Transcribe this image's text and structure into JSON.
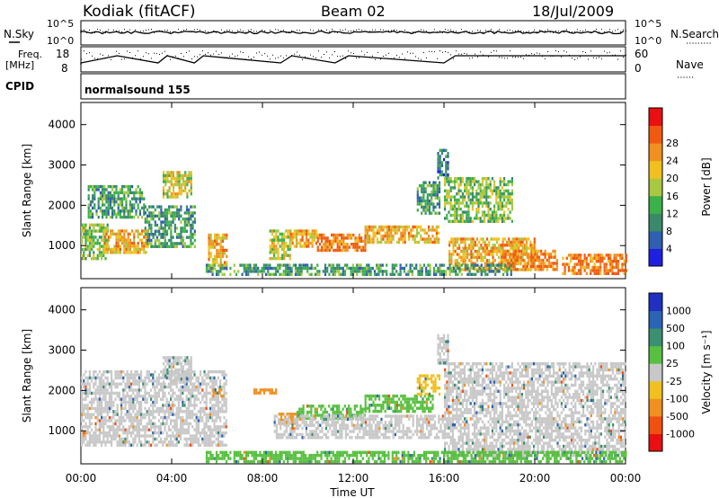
{
  "header": {
    "site": "Kodiak (fitACF)",
    "beam": "Beam 02",
    "date": "18/Jul/2009"
  },
  "status_panel": {
    "left_top_label": "N.Sky",
    "left_top_ticks": [
      "10^5",
      "10^0"
    ],
    "right_top_ticks": [
      "10^5",
      "10^0"
    ],
    "right_top_label": "N.Search",
    "freq_label_1": "Freq.",
    "freq_label_2": "[MHz]",
    "freq_ticks": [
      "18",
      "8"
    ],
    "nave_ticks": [
      "60",
      "0"
    ],
    "nave_label": "Nave",
    "cpid_label": "CPID",
    "cpid_value": "normalsound 155"
  },
  "time_axis": {
    "ticks": [
      "00:00",
      "04:00",
      "08:00",
      "12:00",
      "16:00",
      "20:00",
      "00:00"
    ],
    "label": "Time UT",
    "range_hours": [
      0,
      24
    ]
  },
  "chart_data": [
    {
      "type": "heatmap",
      "quantity": "Power",
      "ylabel": "Slant Range [km]",
      "yticks": [
        "1000",
        "2000",
        "3000",
        "4000"
      ],
      "ylim": [
        180,
        4550
      ],
      "colorbar_label": "Power [dB]",
      "colorbar_ticks": [
        "4",
        "8",
        "12",
        "16",
        "20",
        "24",
        "28"
      ],
      "colorbar_colors": [
        "#1f1fe0",
        "#2f5fb0",
        "#3a8a6a",
        "#3cb04a",
        "#a8c840",
        "#f0c020",
        "#f09020",
        "#f05a10",
        "#e81010"
      ],
      "echo_regions": [
        {
          "t_start": 0.0,
          "t_end": 1.2,
          "r_low": 650,
          "r_high": 1550,
          "power_db": 16
        },
        {
          "t_start": 0.3,
          "t_end": 2.8,
          "r_low": 1700,
          "r_high": 2500,
          "power_db": 12
        },
        {
          "t_start": 1.0,
          "t_end": 3.0,
          "r_low": 800,
          "r_high": 1400,
          "power_db": 24
        },
        {
          "t_start": 2.8,
          "t_end": 5.0,
          "r_low": 1000,
          "r_high": 2000,
          "power_db": 12
        },
        {
          "t_start": 3.6,
          "t_end": 4.9,
          "r_low": 2200,
          "r_high": 2850,
          "power_db": 20
        },
        {
          "t_start": 5.6,
          "t_end": 6.4,
          "r_low": 450,
          "r_high": 1300,
          "power_db": 24
        },
        {
          "t_start": 8.3,
          "t_end": 9.2,
          "r_low": 700,
          "r_high": 1400,
          "power_db": 20
        },
        {
          "t_start": 9.2,
          "t_end": 10.4,
          "r_low": 1000,
          "r_high": 1400,
          "power_db": 24
        },
        {
          "t_start": 10.4,
          "t_end": 12.5,
          "r_low": 850,
          "r_high": 1300,
          "power_db": 28
        },
        {
          "t_start": 12.5,
          "t_end": 15.8,
          "r_low": 1050,
          "r_high": 1500,
          "power_db": 24
        },
        {
          "t_start": 14.8,
          "t_end": 15.8,
          "r_low": 1800,
          "r_high": 2600,
          "power_db": 12
        },
        {
          "t_start": 15.7,
          "t_end": 16.2,
          "r_low": 2700,
          "r_high": 3400,
          "power_db": 8
        },
        {
          "t_start": 16.0,
          "t_end": 19.0,
          "r_low": 1600,
          "r_high": 2700,
          "power_db": 16
        },
        {
          "t_start": 16.2,
          "t_end": 20.0,
          "r_low": 400,
          "r_high": 1200,
          "power_db": 24
        },
        {
          "t_start": 18.5,
          "t_end": 21.0,
          "r_low": 400,
          "r_high": 900,
          "power_db": 28
        },
        {
          "t_start": 21.2,
          "t_end": 24.0,
          "r_low": 300,
          "r_high": 800,
          "power_db": 28
        },
        {
          "t_start": 5.5,
          "t_end": 19.0,
          "r_low": 250,
          "r_high": 550,
          "power_db": 12
        }
      ]
    },
    {
      "type": "heatmap",
      "quantity": "Velocity",
      "ylabel": "Slant Range [km]",
      "yticks": [
        "1000",
        "2000",
        "3000",
        "4000"
      ],
      "ylim": [
        180,
        4550
      ],
      "colorbar_label": "Velocity [m s⁻¹]",
      "colorbar_ticks": [
        "1000",
        "500",
        "100",
        "25",
        "-25",
        "-100",
        "-500",
        "-1000"
      ],
      "colorbar_colors": [
        "#2030c0",
        "#2a64b4",
        "#3a9070",
        "#58c040",
        "#c8c8c8",
        "#f0c020",
        "#f09020",
        "#f05010",
        "#e81010"
      ],
      "echo_regions": [
        {
          "t_start": 0.0,
          "t_end": 6.4,
          "r_low": 650,
          "r_high": 2500,
          "velocity": 0
        },
        {
          "t_start": 3.6,
          "t_end": 4.9,
          "r_low": 2200,
          "r_high": 2850,
          "velocity": 0
        },
        {
          "t_start": 5.8,
          "t_end": 6.3,
          "r_low": 1850,
          "r_high": 2050,
          "velocity": -150
        },
        {
          "t_start": 7.6,
          "t_end": 8.6,
          "r_low": 1900,
          "r_high": 2050,
          "velocity": -150
        },
        {
          "t_start": 8.7,
          "t_end": 9.5,
          "r_low": 1150,
          "r_high": 1450,
          "velocity": -120
        },
        {
          "t_start": 9.5,
          "t_end": 12.5,
          "r_low": 1300,
          "r_high": 1650,
          "velocity": 60
        },
        {
          "t_start": 12.5,
          "t_end": 15.5,
          "r_low": 1450,
          "r_high": 1900,
          "velocity": 60
        },
        {
          "t_start": 14.8,
          "t_end": 15.8,
          "r_low": 1900,
          "r_high": 2400,
          "velocity": -80
        },
        {
          "t_start": 8.5,
          "t_end": 16.0,
          "r_low": 850,
          "r_high": 1400,
          "velocity": 0
        },
        {
          "t_start": 15.7,
          "t_end": 16.2,
          "r_low": 2700,
          "r_high": 3400,
          "velocity": 0
        },
        {
          "t_start": 16.0,
          "t_end": 24.0,
          "r_low": 400,
          "r_high": 2700,
          "velocity": 0
        },
        {
          "t_start": 5.5,
          "t_end": 24.0,
          "r_low": 250,
          "r_high": 500,
          "velocity": 80
        }
      ]
    }
  ]
}
